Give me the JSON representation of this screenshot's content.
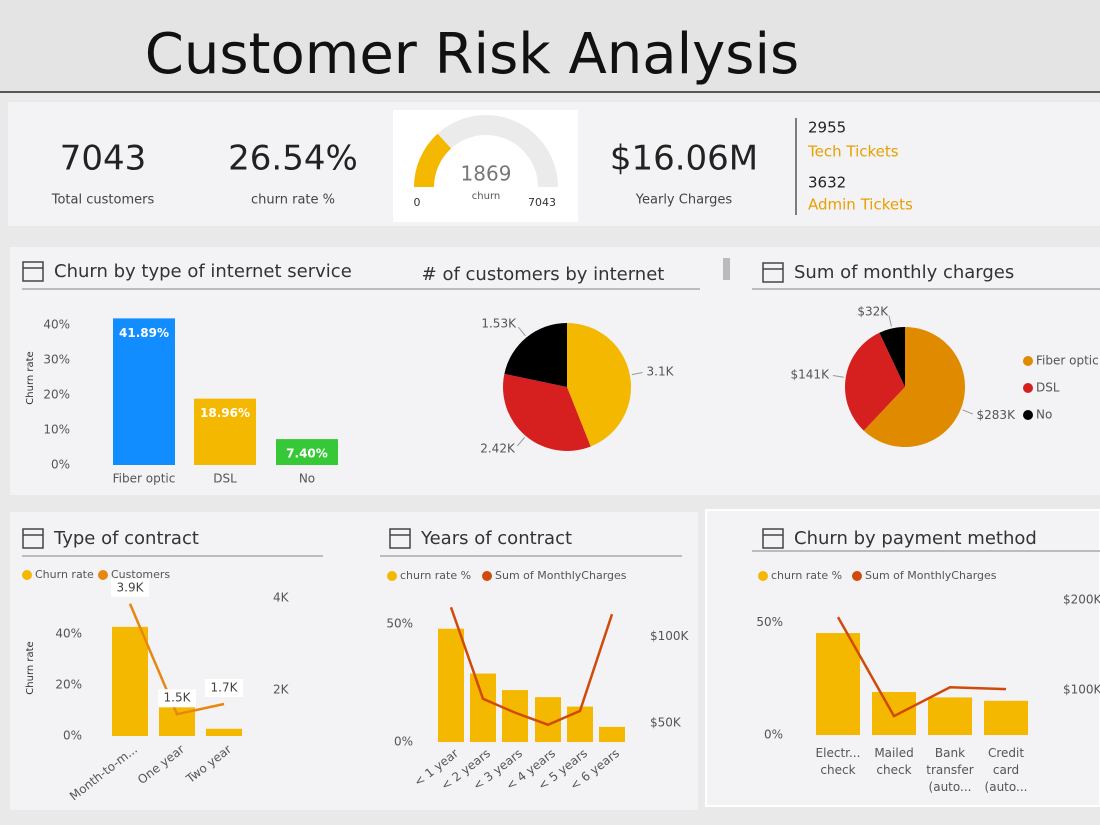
{
  "header": {
    "title": "Customer Risk Analysis"
  },
  "kpis": [
    {
      "value": "7043",
      "label": "Total customers"
    },
    {
      "value": "26.54%",
      "label": "churn rate %"
    },
    {
      "value": "$16.06M",
      "label": "Yearly Charges"
    }
  ],
  "tickets": [
    {
      "count": "2955",
      "label": "Tech Tickets"
    },
    {
      "count": "3632",
      "label": "Admin Tickets"
    }
  ],
  "chart_data": [
    {
      "type": "gauge",
      "value": 1869,
      "label": "churn",
      "ylim": [
        0,
        7043
      ],
      "color": "#f5b800"
    },
    {
      "type": "bar",
      "title": "Churn by type of internet service",
      "y_label": "Churn rate",
      "categories": [
        "Fiber optic",
        "DSL",
        "No"
      ],
      "values": [
        41.89,
        18.96,
        7.4
      ],
      "value_labels": [
        "41.89%",
        "18.96%",
        "7.40%"
      ],
      "colors": [
        "#118dff",
        "#f5b800",
        "#37c837"
      ],
      "ylim": [
        0,
        43
      ],
      "yticks": [
        {
          "value": 0,
          "label": "0%"
        },
        {
          "value": 10,
          "label": "10%"
        },
        {
          "value": 20,
          "label": "20%"
        },
        {
          "value": 30,
          "label": "30%"
        },
        {
          "value": 40,
          "label": "40%"
        }
      ]
    },
    {
      "type": "pie",
      "title": "# of customers by internet",
      "categories": [
        "Fiber optic",
        "DSL",
        "No"
      ],
      "values": [
        3100,
        2420,
        1530
      ],
      "value_labels": [
        "3.1K",
        "2.42K",
        "1.53K"
      ],
      "colors": [
        "#f5b800",
        "#d62020",
        "#000000"
      ]
    },
    {
      "type": "pie",
      "title": "Sum of monthly charges",
      "categories": [
        "Fiber optic",
        "DSL",
        "No"
      ],
      "values": [
        283000,
        141000,
        32000
      ],
      "value_labels": [
        "$283K",
        "$141K",
        "$32K"
      ],
      "colors": [
        "#e08a00",
        "#d62020",
        "#000000"
      ],
      "legend": "right"
    },
    {
      "type": "combo",
      "title": "Type of contract",
      "y_label": "Churn rate",
      "categories": [
        "Month-to-m...",
        "One year",
        "Two year"
      ],
      "series": [
        {
          "name": "Churn rate",
          "type": "bar",
          "color": "#f5b800",
          "values": [
            42.71,
            11.27,
            2.83
          ]
        },
        {
          "name": "Customers",
          "type": "line",
          "axis": "y2",
          "color": "#e8870e",
          "values": [
            3875,
            1473,
            1695
          ],
          "value_labels": [
            "3.9K",
            "1.5K",
            "1.7K"
          ]
        }
      ],
      "ylim": [
        0,
        54
      ],
      "yticks": [
        {
          "value": 0,
          "label": "0%"
        },
        {
          "value": 20,
          "label": "20%"
        },
        {
          "value": 40,
          "label": "40%"
        }
      ],
      "y2lim": [
        1000,
        4000
      ],
      "y2ticks": [
        {
          "value": 2000,
          "label": "2K"
        },
        {
          "value": 4000,
          "label": "4K"
        }
      ]
    },
    {
      "type": "combo",
      "title": "Years of contract",
      "categories": [
        "< 1 year",
        "< 2 years",
        "< 3 years",
        "< 4 years",
        "< 5 years",
        "< 6 years"
      ],
      "series": [
        {
          "name": "churn rate %",
          "type": "bar",
          "color": "#f5b800",
          "values": [
            48,
            29,
            22,
            19,
            15,
            6.4
          ]
        },
        {
          "name": "Sum of MonthlyCharges",
          "type": "line",
          "axis": "y2",
          "color": "#d04a0a",
          "values": [
            117000,
            64000,
            56000,
            49000,
            57000,
            113000
          ]
        }
      ],
      "ylim": [
        0,
        60
      ],
      "yticks": [
        {
          "value": 0,
          "label": "0%"
        },
        {
          "value": 50,
          "label": "50%"
        }
      ],
      "y2lim": [
        39000,
        121000
      ],
      "y2ticks": [
        {
          "value": 50000,
          "label": "$50K"
        },
        {
          "value": 100000,
          "label": "$100K"
        }
      ]
    },
    {
      "type": "combo",
      "title": "Churn by payment method",
      "categories": [
        "Electr... check",
        "Mailed check",
        "Bank transfer (auto...",
        "Credit card (auto..."
      ],
      "series": [
        {
          "name": "churn rate %",
          "type": "bar",
          "color": "#f5b800",
          "values": [
            45.3,
            19.1,
            16.7,
            15.2
          ]
        },
        {
          "name": "Sum of MonthlyCharges",
          "type": "line",
          "axis": "y2",
          "color": "#d04a0a",
          "values": [
            181000,
            71000,
            103000,
            101000
          ]
        }
      ],
      "ylim": [
        0,
        60
      ],
      "yticks": [
        {
          "value": 0,
          "label": "0%"
        },
        {
          "value": 50,
          "label": "50%"
        }
      ],
      "y2lim": [
        50000,
        200000
      ],
      "y2ticks": [
        {
          "value": 100000,
          "label": "$100K"
        },
        {
          "value": 200000,
          "label": "$200K"
        }
      ]
    }
  ]
}
